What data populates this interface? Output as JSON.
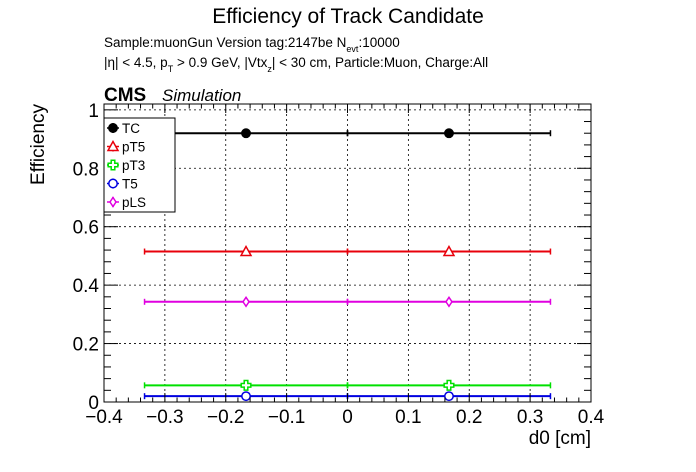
{
  "chart_data": {
    "type": "scatter",
    "title": "Efficiency of Track Candidate",
    "subtitle_line1_prefix": "Sample:muonGun   Version tag:2147be  N",
    "subtitle_line1_sub": "evt",
    "subtitle_line1_suffix": ":10000",
    "subtitle_line2_parts": [
      "|η| < 4.5, p",
      "T",
      " > 0.9 GeV, |Vtx",
      "z",
      "| < 30 cm, Particle:Muon, Charge:All"
    ],
    "cms_label": "CMS",
    "cms_sublabel": "Simulation",
    "xlabel": "d0 [cm]",
    "ylabel": "Efficiency",
    "xlim": [
      -0.4,
      0.4
    ],
    "ylim": [
      0,
      1.0
    ],
    "grid": true,
    "legend_position": "top-left",
    "x_ticks": [
      -0.4,
      -0.3,
      -0.2,
      -0.1,
      0,
      0.1,
      0.2,
      0.3,
      0.4
    ],
    "x_tick_labels": [
      "−0.4",
      "−0.3",
      "−0.2",
      "−0.1",
      "0",
      "0.1",
      "0.2",
      "0.3",
      "0.4"
    ],
    "y_ticks": [
      0,
      0.2,
      0.4,
      0.6,
      0.8,
      1
    ],
    "y_tick_labels": [
      "0",
      "0.2",
      "0.4",
      "0.6",
      "0.8",
      "1"
    ],
    "x": [
      -0.1667,
      0.1667
    ],
    "x_err": [
      0.1667,
      0.1667
    ],
    "series": [
      {
        "name": "TC",
        "color": "#000000",
        "marker": "filled-circle",
        "values": [
          0.92,
          0.92
        ]
      },
      {
        "name": "pT5",
        "color": "#e8000b",
        "marker": "open-triangle",
        "values": [
          0.515,
          0.515
        ]
      },
      {
        "name": "pT3",
        "color": "#00e000",
        "marker": "open-cross",
        "values": [
          0.057,
          0.057
        ]
      },
      {
        "name": "T5",
        "color": "#0000e0",
        "marker": "open-circle",
        "values": [
          0.02,
          0.02
        ]
      },
      {
        "name": "pLS",
        "color": "#e000e0",
        "marker": "open-diamond",
        "values": [
          0.343,
          0.343
        ]
      }
    ]
  }
}
